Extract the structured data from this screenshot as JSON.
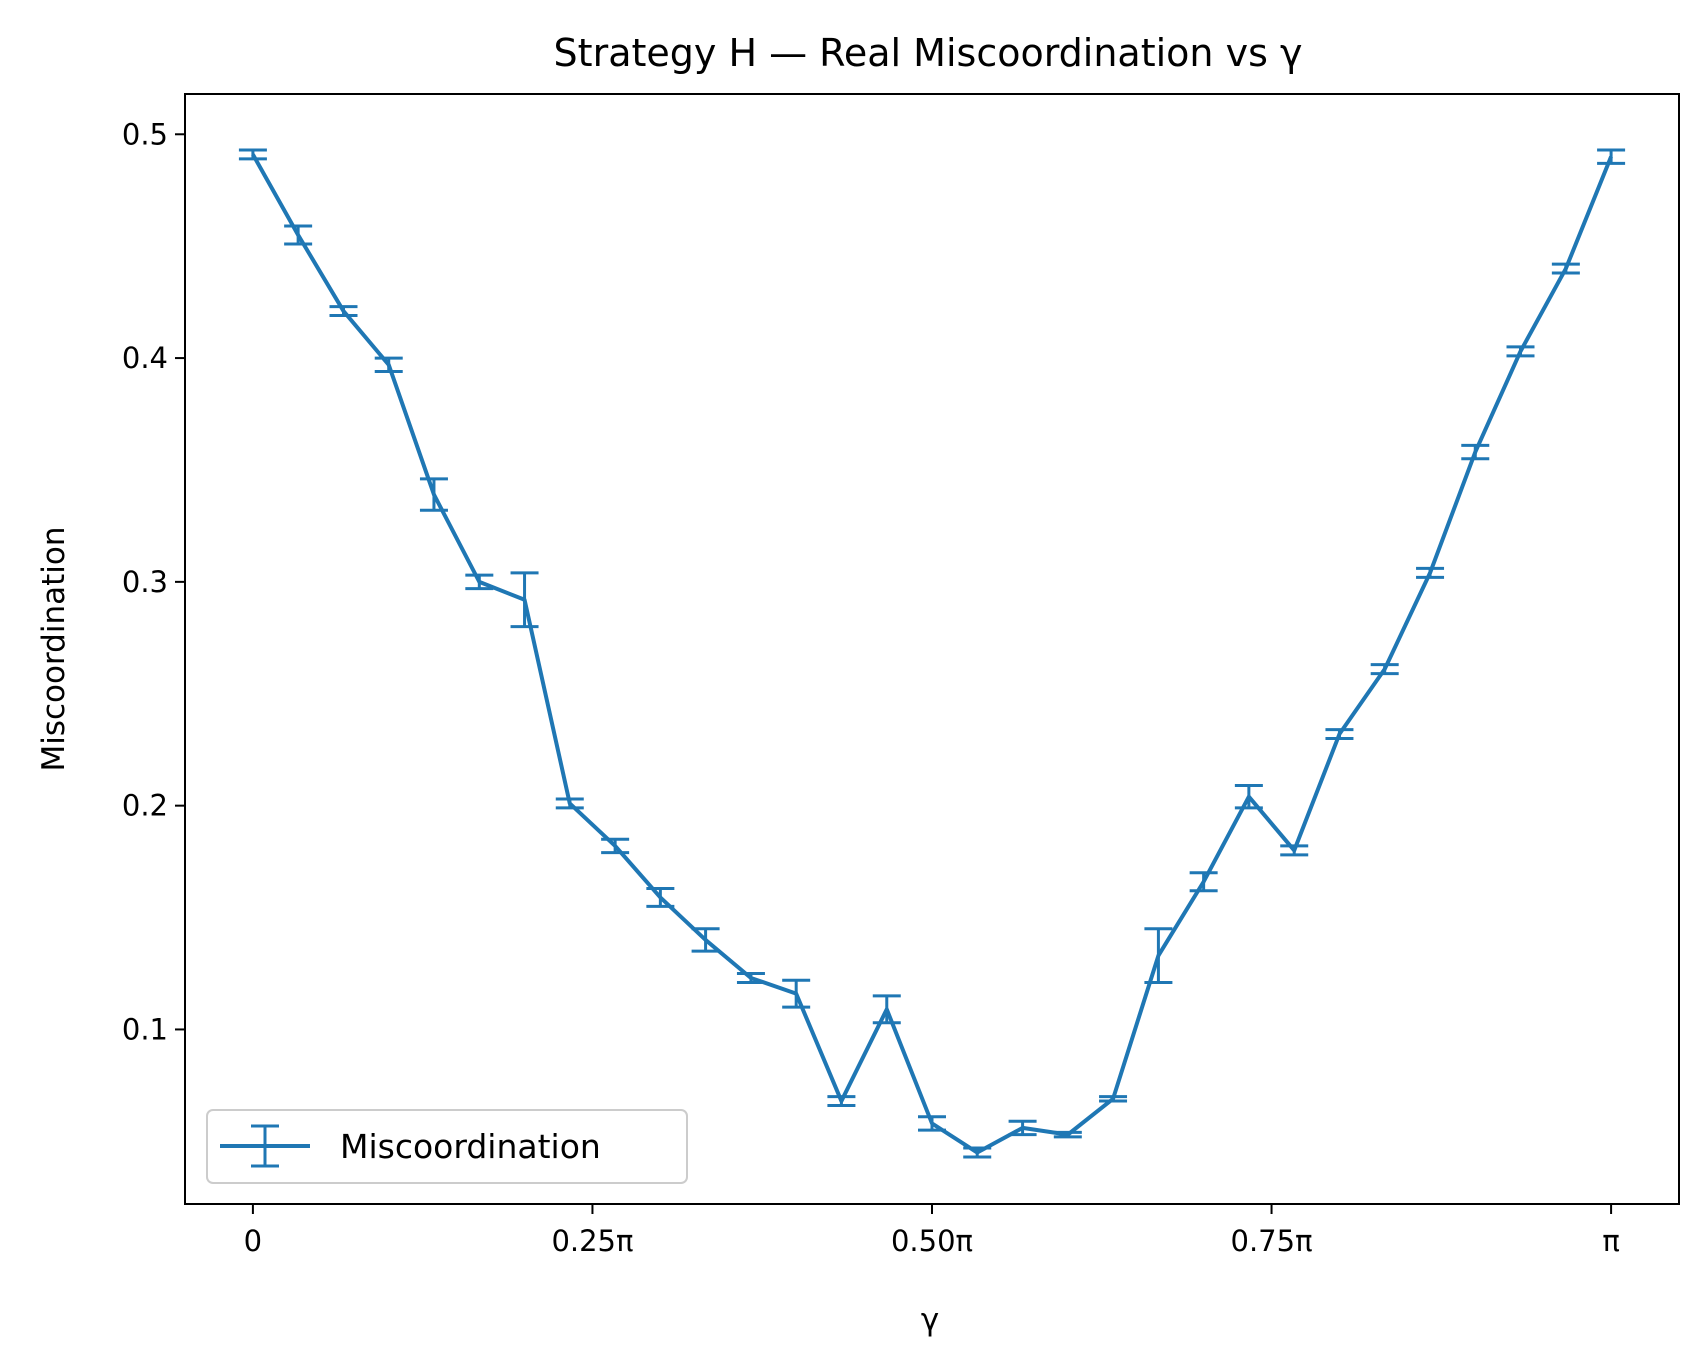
{
  "chart_data": {
    "type": "line",
    "title": "Strategy H — Real Miscoordination vs γ",
    "xlabel": "γ",
    "ylabel": "Miscoordination",
    "x_unit": "π",
    "xlim": [
      -0.05,
      1.05
    ],
    "ylim": [
      0.022,
      0.518
    ],
    "x_ticks": [
      {
        "value": 0,
        "label": "0"
      },
      {
        "value": 0.25,
        "label": "0.25π"
      },
      {
        "value": 0.5,
        "label": "0.50π"
      },
      {
        "value": 0.75,
        "label": "0.75π"
      },
      {
        "value": 1,
        "label": "π"
      }
    ],
    "y_ticks": [
      {
        "value": 0.1,
        "label": "0.1"
      },
      {
        "value": 0.2,
        "label": "0.2"
      },
      {
        "value": 0.3,
        "label": "0.3"
      },
      {
        "value": 0.4,
        "label": "0.4"
      },
      {
        "value": 0.5,
        "label": "0.5"
      }
    ],
    "grid": false,
    "legend_position": "lower-left",
    "series": [
      {
        "name": "Miscoordination",
        "color": "#1f77b4",
        "x": [
          0,
          0.0333,
          0.0667,
          0.1,
          0.1333,
          0.1667,
          0.2,
          0.2333,
          0.2667,
          0.3,
          0.3333,
          0.3667,
          0.4,
          0.4333,
          0.4667,
          0.5,
          0.5333,
          0.5667,
          0.6,
          0.6333,
          0.6667,
          0.7,
          0.7333,
          0.7667,
          0.8,
          0.8333,
          0.8667,
          0.9,
          0.9333,
          0.9667,
          1
        ],
        "y": [
          0.491,
          0.455,
          0.421,
          0.397,
          0.339,
          0.3,
          0.292,
          0.201,
          0.182,
          0.159,
          0.14,
          0.123,
          0.116,
          0.068,
          0.109,
          0.058,
          0.045,
          0.056,
          0.053,
          0.069,
          0.133,
          0.166,
          0.204,
          0.18,
          0.232,
          0.261,
          0.304,
          0.358,
          0.403,
          0.44,
          0.49
        ],
        "err": [
          0.002,
          0.004,
          0.002,
          0.003,
          0.007,
          0.003,
          0.012,
          0.002,
          0.003,
          0.004,
          0.005,
          0.002,
          0.006,
          0.002,
          0.006,
          0.003,
          0.002,
          0.003,
          0.001,
          0.001,
          0.012,
          0.004,
          0.005,
          0.002,
          0.002,
          0.002,
          0.002,
          0.003,
          0.002,
          0.002,
          0.003
        ]
      }
    ]
  }
}
